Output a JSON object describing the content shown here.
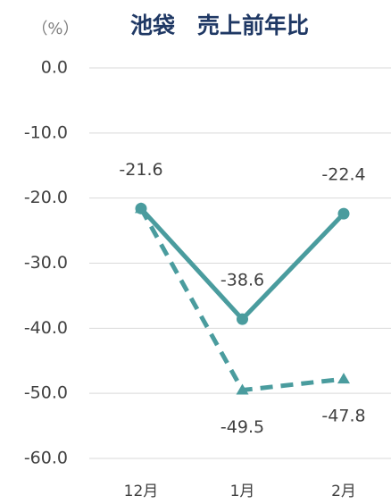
{
  "chart_data": {
    "type": "line",
    "title": "池袋　売上前年比",
    "y_label": "（%）",
    "categories": [
      "12月",
      "1月",
      "2月"
    ],
    "series": [
      {
        "color": "#4a9c9e",
        "style": "solid",
        "marker": "circle",
        "values": [
          -21.6,
          -38.6,
          -22.4
        ]
      },
      {
        "color": "#4a9c9e",
        "style": "dashed",
        "marker": "triangle",
        "values": [
          -21.6,
          -49.5,
          -47.8
        ]
      }
    ],
    "ylim": [
      -60,
      0
    ],
    "yticks": [
      {
        "value": 0,
        "label": "0.0"
      },
      {
        "value": -10,
        "label": "-10.0"
      },
      {
        "value": -20,
        "label": "-20.0"
      },
      {
        "value": -30,
        "label": "-30.0"
      },
      {
        "value": -40,
        "label": "-40.0"
      },
      {
        "value": -50,
        "label": "-50.0"
      },
      {
        "value": -60,
        "label": "-60.0"
      }
    ],
    "grid": true
  }
}
